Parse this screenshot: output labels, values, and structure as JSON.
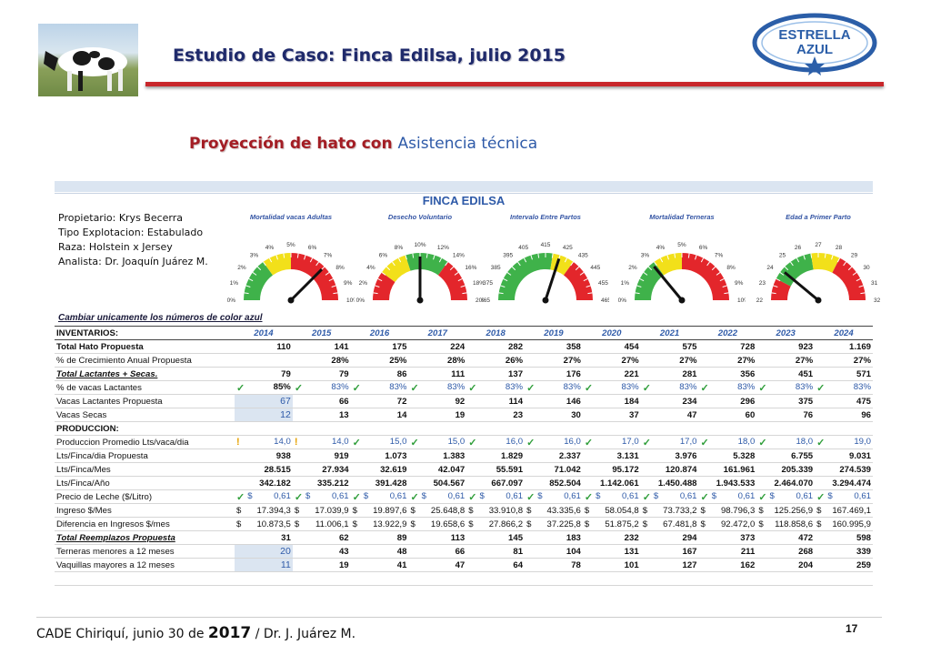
{
  "header": {
    "title": "Estudio de Caso: Finca Edilsa, julio 2015",
    "logo_line1": "ESTRELLA",
    "logo_line2": "AZUL",
    "subtitle_part1": "Proyección de hato con",
    "subtitle_part2": "Asistencia técnica"
  },
  "farm_title": "FINCA EDILSA",
  "info": [
    "Propietario: Krys Becerra",
    "Tipo Explotacion: Estabulado",
    "Raza: Holstein x Jersey",
    "Analista: Dr. Joaquín Juárez M."
  ],
  "gauges": [
    {
      "label": "Mortalidad vacas Adultas",
      "ticks": [
        "0%",
        "1%",
        "2%",
        "3%",
        "4%",
        "5%",
        "6%",
        "7%",
        "8%",
        "9%",
        "10%"
      ],
      "needle": 0.75
    },
    {
      "label": "Desecho Voluntario",
      "ticks": [
        "0%",
        "2%",
        "4%",
        "6%",
        "8%",
        "10%",
        "12%",
        "14%",
        "16%",
        "18%",
        "20%"
      ],
      "needle": 0.5
    },
    {
      "label": "Intervalo Entre Partos",
      "ticks": [
        "365",
        "375",
        "385",
        "395",
        "405",
        "415",
        "425",
        "435",
        "445",
        "455",
        "465"
      ],
      "needle": 0.6
    },
    {
      "label": "Mortalidad Terneras",
      "ticks": [
        "0%",
        "1%",
        "2%",
        "3%",
        "4%",
        "5%",
        "6%",
        "7%",
        "8%",
        "9%",
        "10%"
      ],
      "needle": 0.28
    },
    {
      "label": "Edad a Primer Parto",
      "ticks": [
        "22",
        "23",
        "24",
        "25",
        "26",
        "27",
        "28",
        "29",
        "30",
        "31",
        "32"
      ],
      "needle": 0.22
    }
  ],
  "note": "Cambiar unicamente los números de color azul",
  "table": {
    "header_label": "INVENTARIOS:",
    "years": [
      "2014",
      "2015",
      "2016",
      "2017",
      "2018",
      "2019",
      "2020",
      "2021",
      "2022",
      "2023",
      "2024"
    ],
    "rows": [
      {
        "label": "Total Hato Propuesta",
        "style": "bold",
        "values": [
          "110",
          "141",
          "175",
          "224",
          "282",
          "358",
          "454",
          "575",
          "728",
          "923",
          "1.169"
        ]
      },
      {
        "label": "% de Crecimiento Anual Propuesta",
        "style": "",
        "values": [
          "",
          "28%",
          "25%",
          "28%",
          "26%",
          "27%",
          "27%",
          "27%",
          "27%",
          "27%",
          "27%"
        ]
      },
      {
        "label": "Total Lactantes + Secas.",
        "style": "boldital",
        "values": [
          "79",
          "79",
          "86",
          "111",
          "137",
          "176",
          "221",
          "281",
          "356",
          "451",
          "571"
        ]
      },
      {
        "label": "% de vacas Lactantes",
        "style": "",
        "marker": "check",
        "values": [
          "85%",
          "83%",
          "83%",
          "83%",
          "83%",
          "83%",
          "83%",
          "83%",
          "83%",
          "83%",
          "83%"
        ]
      },
      {
        "label": "Vacas Lactantes Propuesta",
        "style": "",
        "input_first": true,
        "values": [
          "67",
          "66",
          "72",
          "92",
          "114",
          "146",
          "184",
          "234",
          "296",
          "375",
          "475"
        ]
      },
      {
        "label": "Vacas Secas",
        "style": "",
        "input_first": true,
        "values": [
          "12",
          "13",
          "14",
          "19",
          "23",
          "30",
          "37",
          "47",
          "60",
          "76",
          "96"
        ]
      },
      {
        "label": "PRODUCCION:",
        "style": "bold",
        "values": [
          "",
          "",
          "",
          "",
          "",
          "",
          "",
          "",
          "",
          "",
          ""
        ]
      },
      {
        "label": "Produccion Promedio Lts/vaca/dia",
        "style": "",
        "marker": "prod",
        "values": [
          "14,0",
          "14,0",
          "15,0",
          "15,0",
          "16,0",
          "16,0",
          "17,0",
          "17,0",
          "18,0",
          "18,0",
          "19,0"
        ]
      },
      {
        "label": "Lts/Finca/dia Propuesta",
        "style": "",
        "values": [
          "938",
          "919",
          "1.073",
          "1.383",
          "1.829",
          "2.337",
          "3.131",
          "3.976",
          "5.328",
          "6.755",
          "9.031"
        ]
      },
      {
        "label": "Lts/Finca/Mes",
        "style": "",
        "values": [
          "28.515",
          "27.934",
          "32.619",
          "42.047",
          "55.591",
          "71.042",
          "95.172",
          "120.874",
          "161.961",
          "205.339",
          "274.539"
        ]
      },
      {
        "label": "Lts/Finca/Año",
        "style": "",
        "values": [
          "342.182",
          "335.212",
          "391.428",
          "504.567",
          "667.097",
          "852.504",
          "1.142.061",
          "1.450.488",
          "1.943.533",
          "2.464.070",
          "3.294.474"
        ]
      },
      {
        "label": "Precio de Leche ($/Litro)",
        "style": "",
        "marker": "price",
        "values": [
          "0,61",
          "0,61",
          "0,61",
          "0,61",
          "0,61",
          "0,61",
          "0,61",
          "0,61",
          "0,61",
          "0,61",
          "0,61"
        ]
      },
      {
        "label": "Ingreso $/Mes",
        "style": "",
        "dollar": true,
        "values": [
          "17.394,3",
          "17.039,9",
          "19.897,6",
          "25.648,8",
          "33.910,8",
          "43.335,6",
          "58.054,8",
          "73.733,2",
          "98.796,3",
          "125.256,9",
          "167.469,1"
        ]
      },
      {
        "label": "Diferencia en Ingresos $/mes",
        "style": "",
        "dollar": true,
        "values": [
          "10.873,5",
          "11.006,1",
          "13.922,9",
          "19.658,6",
          "27.866,2",
          "37.225,8",
          "51.875,2",
          "67.481,8",
          "92.472,0",
          "118.858,6",
          "160.995,9"
        ]
      },
      {
        "label": "Total Reemplazos Propuesta",
        "style": "boldital",
        "values": [
          "31",
          "62",
          "89",
          "113",
          "145",
          "183",
          "232",
          "294",
          "373",
          "472",
          "598"
        ]
      },
      {
        "label": "Terneras menores a 12 meses",
        "style": "",
        "input_first": true,
        "values": [
          "20",
          "43",
          "48",
          "66",
          "81",
          "104",
          "131",
          "167",
          "211",
          "268",
          "339"
        ]
      },
      {
        "label": "Vaquillas mayores a 12 meses",
        "style": "",
        "input_first": true,
        "values": [
          "11",
          "19",
          "41",
          "47",
          "64",
          "78",
          "101",
          "127",
          "162",
          "204",
          "259"
        ]
      }
    ],
    "check_symbol": "✓",
    "warn_symbol": "!",
    "dollar_symbol": "$"
  },
  "footer": {
    "text_pre": "CADE Chiriquí,  junio 30 de ",
    "year": "2017",
    "text_post": " / Dr. J. Juárez M.",
    "page": "17"
  },
  "colors": {
    "title": "#1f2a6b",
    "accent_red": "#c8272b",
    "accent_blue": "#2e5aa8",
    "gauge_green": "#3fb24a",
    "gauge_yellow": "#f2e01a",
    "gauge_red": "#e3262b"
  }
}
